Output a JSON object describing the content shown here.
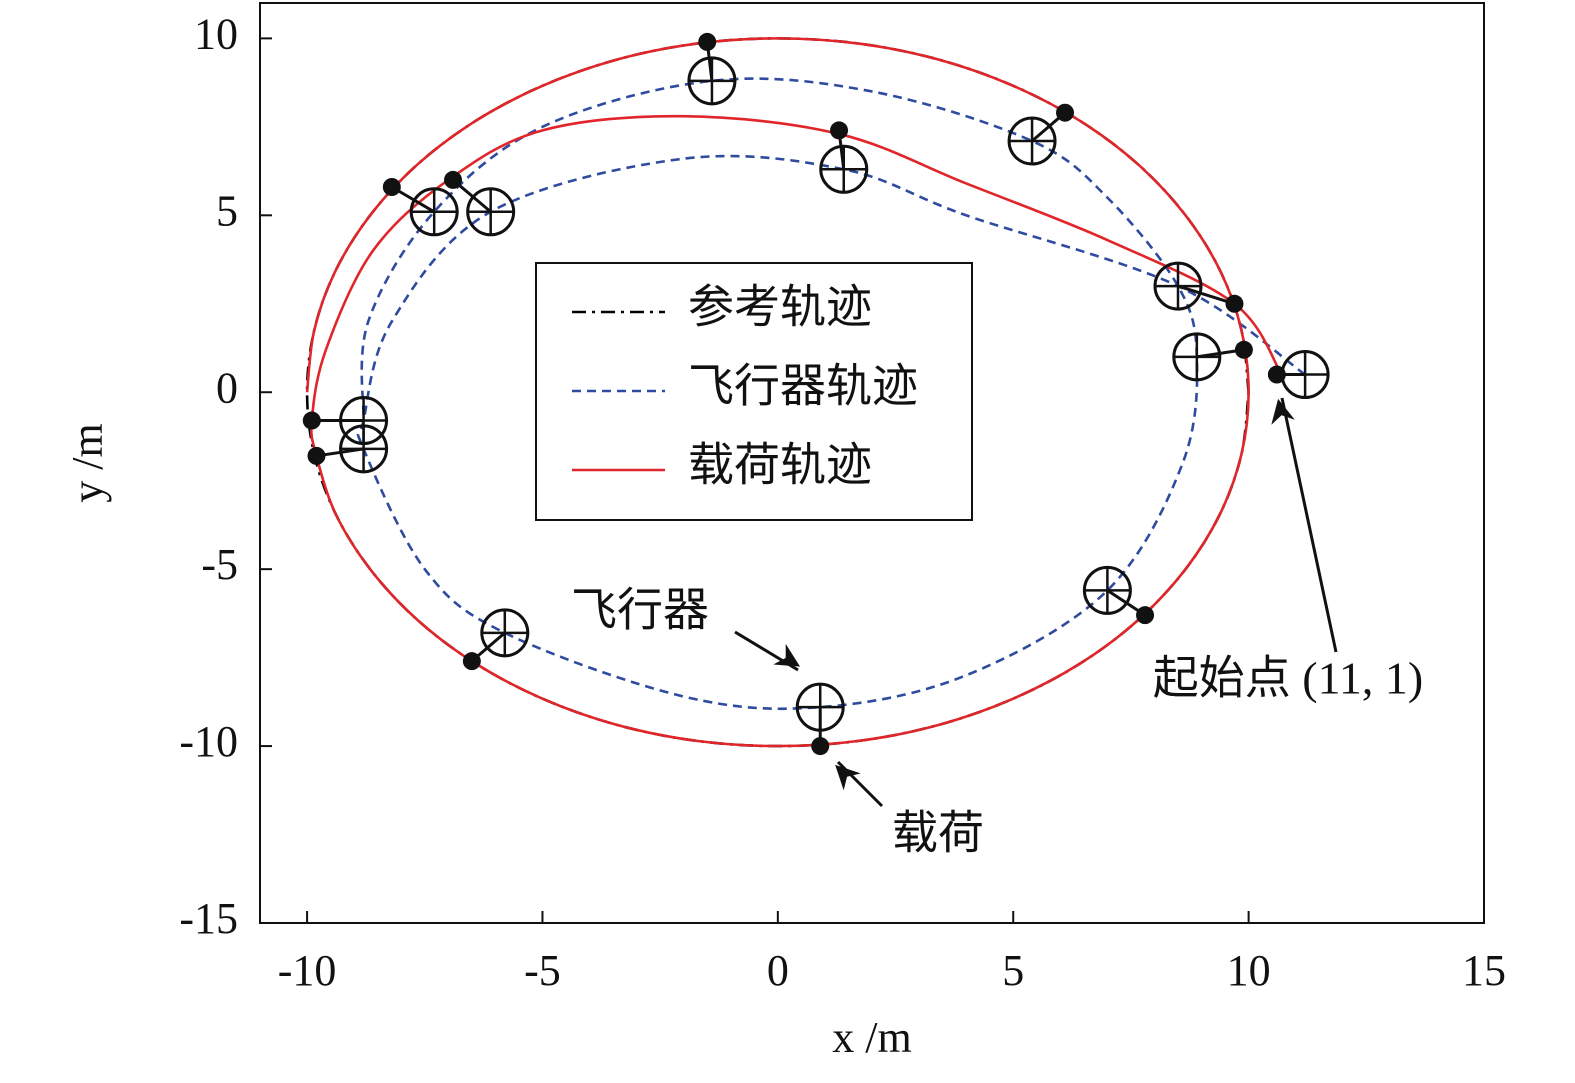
{
  "chart_data": {
    "type": "line",
    "x_label": "x /m",
    "y_label": "y /m",
    "xlim": [
      -11,
      15
    ],
    "ylim": [
      -15,
      11
    ],
    "xticks": [
      -10,
      -5,
      0,
      5,
      10,
      15
    ],
    "yticks": [
      -15,
      -10,
      -5,
      0,
      5,
      10
    ],
    "grid": false,
    "legend_position": "center",
    "series": [
      {
        "name": "参考轨迹",
        "color": "#000000",
        "line_style": "dashdot",
        "x": [
          10,
          9.85,
          9.4,
          8.66,
          7.66,
          6.43,
          5,
          3.42,
          1.74,
          0,
          -1.74,
          -3.42,
          -5,
          -6.43,
          -7.66,
          -8.66,
          -9.4,
          -9.85,
          -10,
          -9.85,
          -9.4,
          -8.66,
          -7.66,
          -6.43,
          -5,
          -3.42,
          -1.74,
          0,
          1.74,
          3.42,
          5,
          6.43,
          7.66,
          8.66,
          9.4,
          9.85,
          10
        ],
        "values": [
          0,
          1.74,
          3.42,
          5,
          6.43,
          7.66,
          8.66,
          9.4,
          9.85,
          10,
          9.85,
          9.4,
          8.66,
          7.66,
          6.43,
          5,
          3.42,
          1.74,
          0,
          -1.74,
          -3.42,
          -5,
          -6.43,
          -7.66,
          -8.66,
          -9.4,
          -9.85,
          -10,
          -9.85,
          -9.4,
          -8.66,
          -7.66,
          -6.43,
          -5,
          -3.42,
          -1.74,
          0
        ]
      },
      {
        "name": "飞行器轨迹",
        "color": "#2f4b9f",
        "line_style": "dashed",
        "x": [
          11.2,
          8.5,
          4,
          1.4,
          -2,
          -6.1,
          -8.2,
          -8.8,
          -8.8,
          -7.5,
          -5.8,
          -2,
          0.9,
          4,
          7,
          8.6,
          8.9,
          8.5,
          7,
          5.4,
          2,
          -1.4,
          -5,
          -7.3,
          -8.7,
          -8.8
        ],
        "values": [
          0.5,
          3,
          5,
          6.3,
          6.6,
          5.1,
          2,
          -0.8,
          -1.6,
          -5,
          -6.8,
          -8.6,
          -8.9,
          -8,
          -5.6,
          -2,
          1,
          3,
          5.5,
          7.1,
          8.5,
          8.8,
          7.5,
          5.1,
          2,
          -0.8
        ]
      },
      {
        "name": "载荷轨迹",
        "color": "#e0262a",
        "line_style": "solid",
        "x": [
          10.7,
          9.7,
          7,
          4,
          1.3,
          -2,
          -5,
          -7,
          -8.6,
          -9.6,
          -9.9,
          -9.8,
          -9.4,
          -8.66,
          -7.66,
          -6.43,
          -5,
          -3.42,
          -1.74,
          0,
          1.74,
          3.42,
          5,
          6.43,
          7.66,
          8.66,
          9.4,
          9.85,
          10,
          9.85,
          9.4,
          8.66,
          7.66,
          6.43,
          5,
          3.42,
          1.74,
          0,
          -1.74,
          -3.42,
          -5,
          -6.43,
          -7.66,
          -8.66,
          -9.4,
          -9.85,
          -10
        ],
        "values": [
          0.5,
          2.5,
          4.3,
          5.9,
          7.3,
          7.8,
          7.4,
          6,
          4,
          1.2,
          -0.8,
          -1.8,
          -3.42,
          -5,
          -6.43,
          -7.66,
          -8.66,
          -9.4,
          -9.85,
          -10,
          -9.85,
          -9.4,
          -8.66,
          -7.66,
          -6.43,
          -5,
          -3.42,
          -1.74,
          0,
          1.74,
          3.42,
          5,
          6.43,
          7.66,
          8.66,
          9.4,
          9.85,
          10,
          9.85,
          9.4,
          8.66,
          7.66,
          6.43,
          5,
          3.42,
          1.74,
          0
        ]
      }
    ],
    "markers": [
      {
        "payload": [
          -1.5,
          9.9
        ],
        "vehicle": [
          -1.4,
          8.8
        ]
      },
      {
        "payload": [
          6.1,
          7.9
        ],
        "vehicle": [
          5.4,
          7.1
        ]
      },
      {
        "payload": [
          1.3,
          7.4
        ],
        "vehicle": [
          1.4,
          6.3
        ]
      },
      {
        "payload": [
          -8.2,
          5.8
        ],
        "vehicle": [
          -7.3,
          5.1
        ]
      },
      {
        "payload": [
          -6.9,
          6.0
        ],
        "vehicle": [
          -6.1,
          5.1
        ]
      },
      {
        "payload": [
          9.7,
          2.5
        ],
        "vehicle": [
          8.5,
          3.0
        ]
      },
      {
        "payload": [
          9.9,
          1.2
        ],
        "vehicle": [
          8.9,
          1.0
        ]
      },
      {
        "payload": [
          10.6,
          0.5
        ],
        "vehicle": [
          11.2,
          0.5
        ]
      },
      {
        "payload": [
          -9.9,
          -0.8
        ],
        "vehicle": [
          -8.8,
          -0.8
        ]
      },
      {
        "payload": [
          -9.8,
          -1.8
        ],
        "vehicle": [
          -8.8,
          -1.6
        ]
      },
      {
        "payload": [
          -6.5,
          -7.6
        ],
        "vehicle": [
          -5.8,
          -6.8
        ]
      },
      {
        "payload": [
          0.9,
          -10
        ],
        "vehicle": [
          0.9,
          -8.9
        ]
      },
      {
        "payload": [
          7.8,
          -6.3
        ],
        "vehicle": [
          7.0,
          -5.6
        ]
      }
    ],
    "annotations": [
      "飞行器",
      "载荷",
      "起始点 (11, 1)"
    ]
  }
}
